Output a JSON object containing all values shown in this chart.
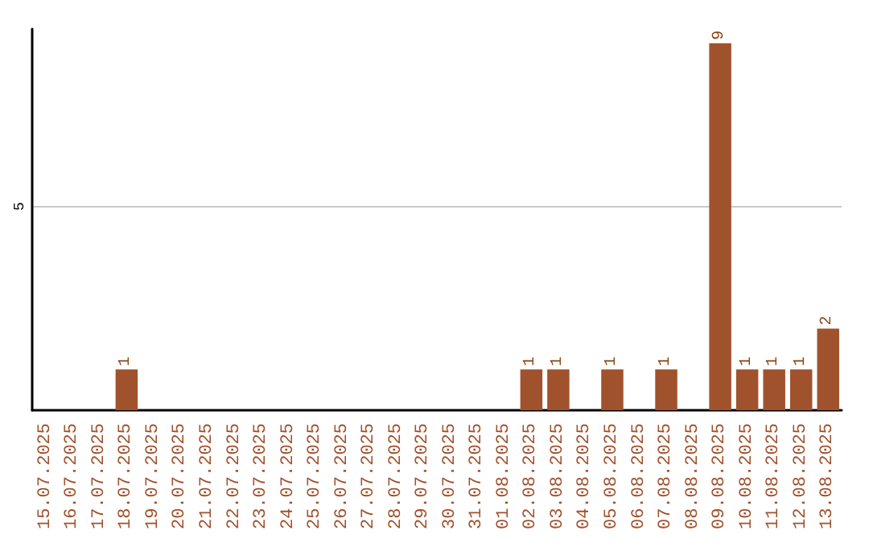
{
  "chart_data": {
    "type": "bar",
    "categories": [
      "15.07.2025",
      "16.07.2025",
      "17.07.2025",
      "18.07.2025",
      "19.07.2025",
      "20.07.2025",
      "21.07.2025",
      "22.07.2025",
      "23.07.2025",
      "24.07.2025",
      "25.07.2025",
      "26.07.2025",
      "27.07.2025",
      "28.07.2025",
      "29.07.2025",
      "30.07.2025",
      "31.07.2025",
      "01.08.2025",
      "02.08.2025",
      "03.08.2025",
      "04.08.2025",
      "05.08.2025",
      "06.08.2025",
      "07.08.2025",
      "08.08.2025",
      "09.08.2025",
      "10.08.2025",
      "11.08.2025",
      "12.08.2025",
      "13.08.2025"
    ],
    "values": [
      0,
      0,
      0,
      1,
      0,
      0,
      0,
      0,
      0,
      0,
      0,
      0,
      0,
      0,
      0,
      0,
      0,
      0,
      1,
      1,
      0,
      1,
      0,
      1,
      0,
      9,
      1,
      1,
      1,
      2
    ],
    "value_labels": [
      null,
      null,
      null,
      "1",
      null,
      null,
      null,
      null,
      null,
      null,
      null,
      null,
      null,
      null,
      null,
      null,
      null,
      null,
      "1",
      "1",
      null,
      "1",
      null,
      "1",
      null,
      "9",
      "1",
      "1",
      "1",
      "2"
    ],
    "color": "#a0522d",
    "ylim": [
      0,
      9.35
    ],
    "yticks": [
      5
    ],
    "grid": "y"
  }
}
